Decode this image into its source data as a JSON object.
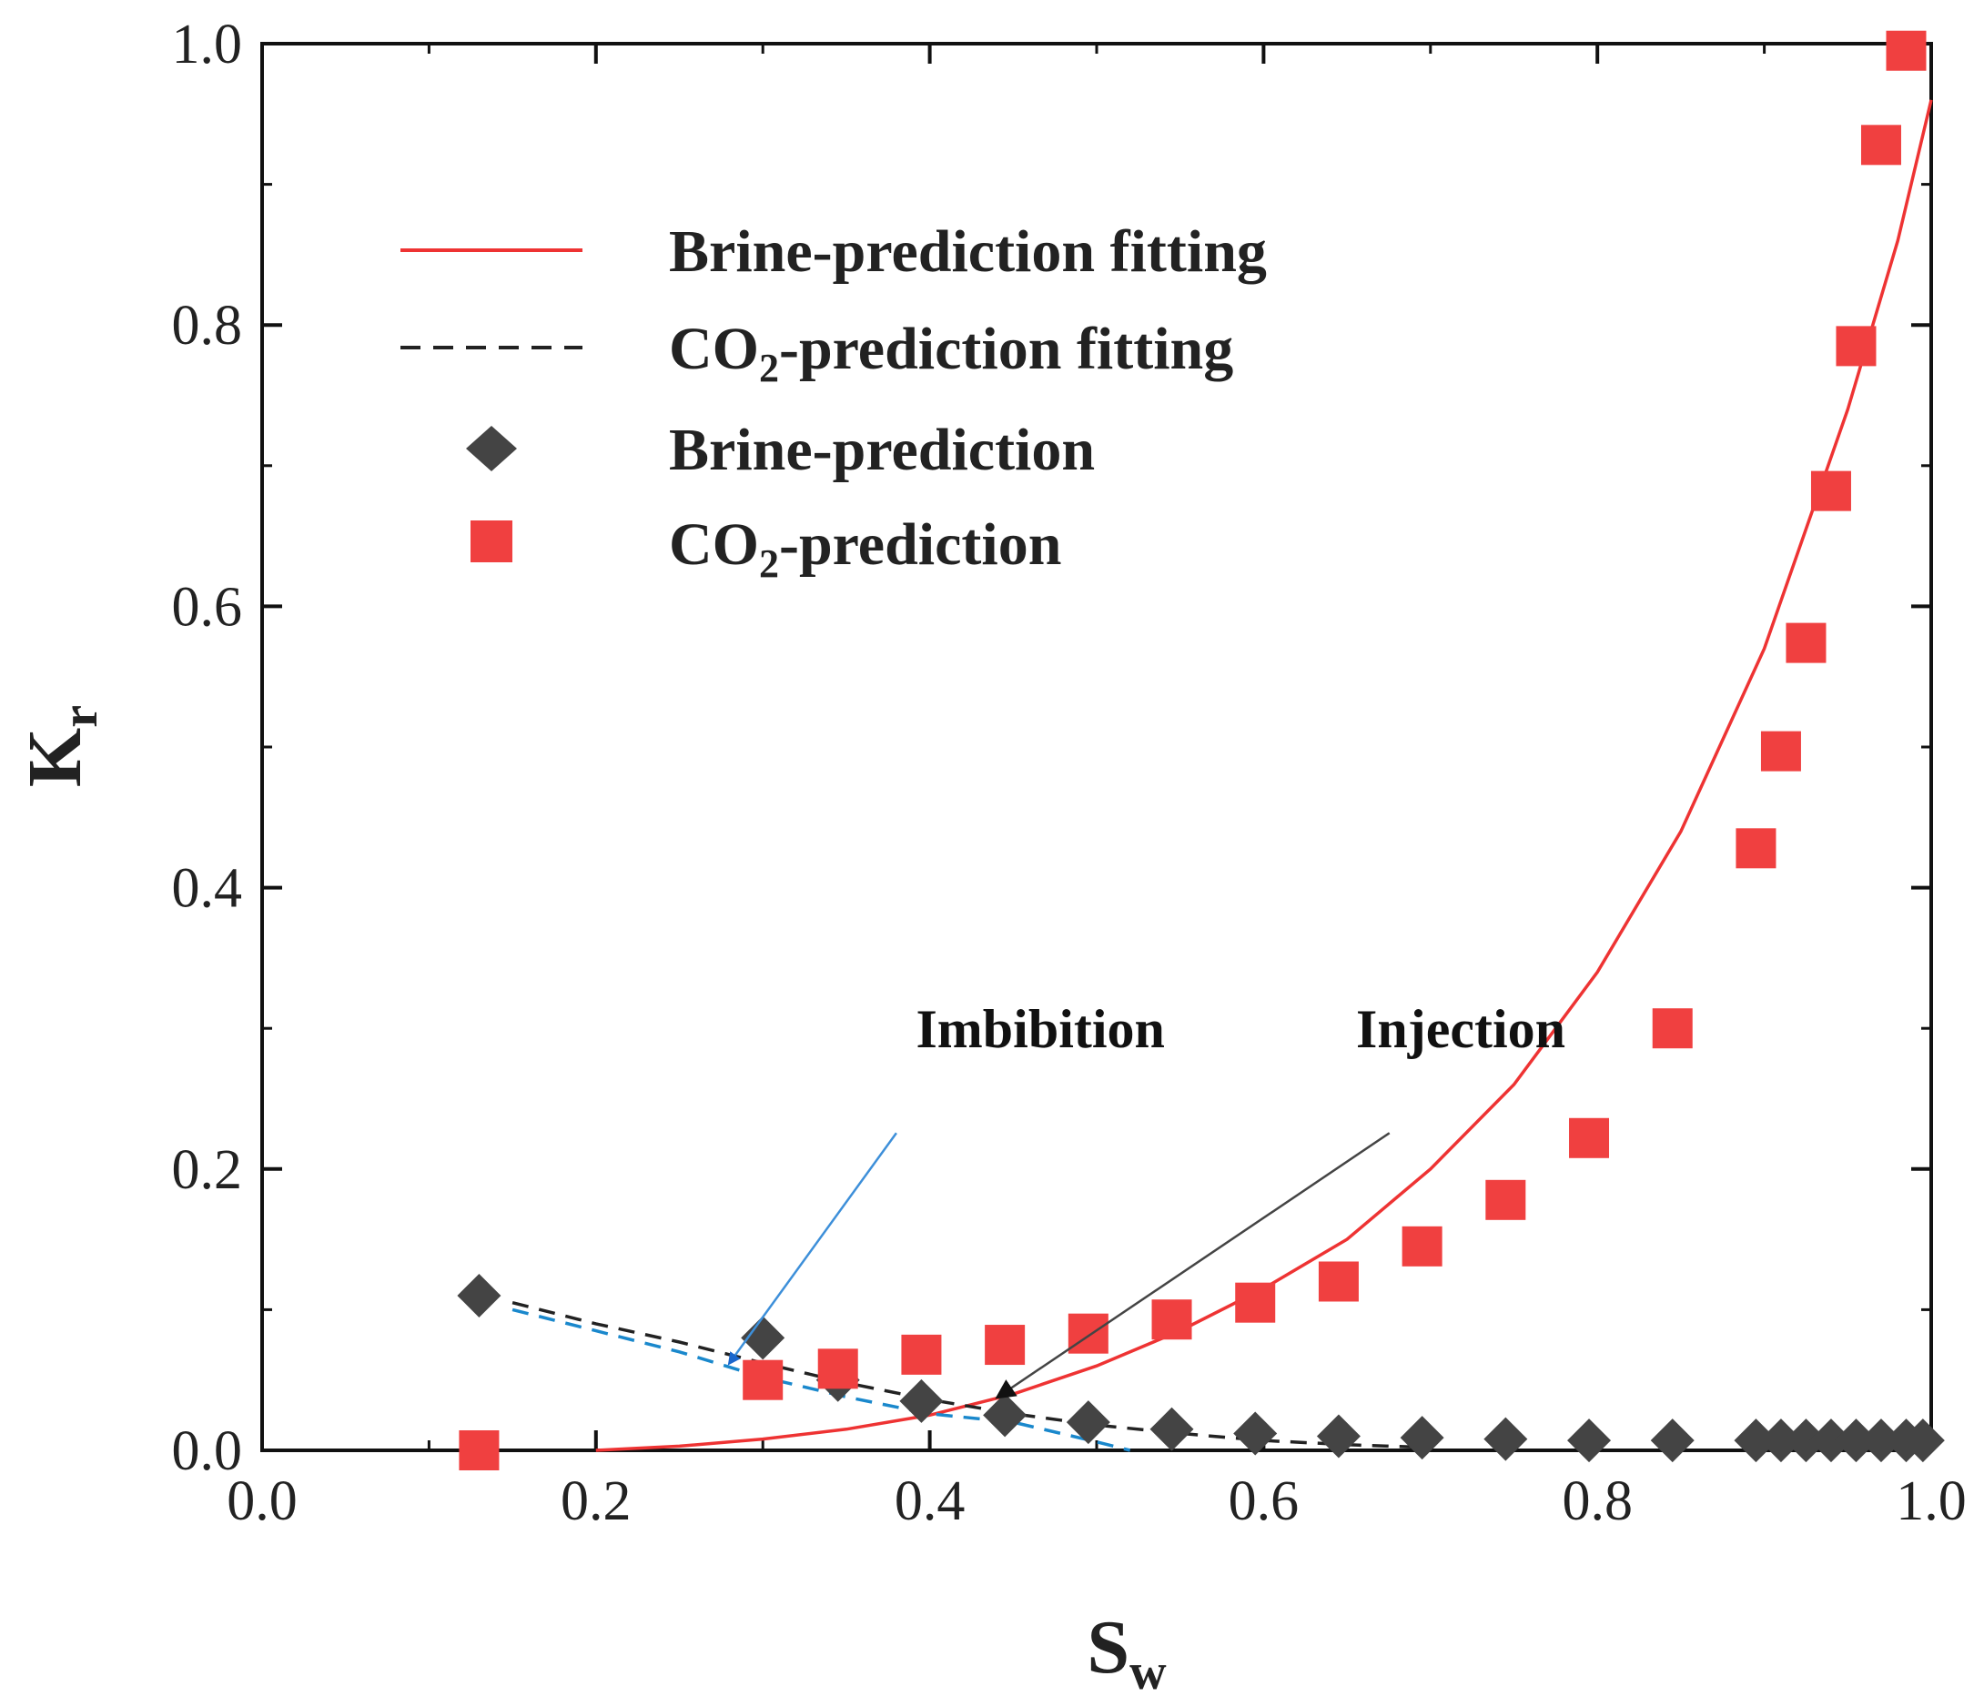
{
  "chart_data": {
    "type": "scatter",
    "xlabel": "S",
    "xlabel_sub": "w",
    "ylabel": "K",
    "ylabel_sub": "r",
    "xlim": [
      0.0,
      1.0
    ],
    "ylim": [
      0.0,
      1.0
    ],
    "x_ticks": [
      "0.0",
      "0.2",
      "0.4",
      "0.6",
      "0.8",
      "1.0"
    ],
    "y_ticks": [
      "0.0",
      "0.2",
      "0.4",
      "0.6",
      "0.8",
      "1.0"
    ],
    "legend": [
      {
        "id": "brine-fit",
        "label": "Brine-prediction fitting",
        "color": "#ee3333",
        "style": "solid-line"
      },
      {
        "id": "co2-fit",
        "label_prefix": "CO",
        "label_sub": "2",
        "label_suffix": "-prediction fitting",
        "color": "#222222",
        "style": "dashed-line"
      },
      {
        "id": "brine-pts",
        "label": "Brine-prediction",
        "color": "#444444",
        "style": "diamond"
      },
      {
        "id": "co2-pts",
        "label_prefix": "CO",
        "label_sub": "2",
        "label_suffix": "-prediction",
        "color": "#f04040",
        "style": "square"
      }
    ],
    "legend_position": "top-left",
    "series": [
      {
        "name": "Brine-prediction",
        "marker": "diamond",
        "color": "#444444",
        "x": [
          0.13,
          0.3,
          0.345,
          0.395,
          0.445,
          0.495,
          0.545,
          0.595,
          0.645,
          0.695,
          0.745,
          0.795,
          0.845,
          0.895,
          0.91,
          0.925,
          0.94,
          0.955,
          0.97,
          0.985,
          0.995
        ],
        "y": [
          0.11,
          0.08,
          0.05,
          0.035,
          0.025,
          0.02,
          0.015,
          0.012,
          0.01,
          0.009,
          0.008,
          0.007,
          0.007,
          0.007,
          0.007,
          0.007,
          0.007,
          0.007,
          0.007,
          0.007,
          0.007
        ]
      },
      {
        "name": "CO2-prediction",
        "marker": "square",
        "color": "#f04040",
        "x": [
          0.13,
          0.3,
          0.345,
          0.395,
          0.445,
          0.495,
          0.545,
          0.595,
          0.645,
          0.695,
          0.745,
          0.795,
          0.845,
          0.895,
          0.91,
          0.925,
          0.94,
          0.955,
          0.97,
          0.985
        ],
        "y": [
          0.0,
          0.05,
          0.058,
          0.068,
          0.075,
          0.083,
          0.093,
          0.105,
          0.12,
          0.145,
          0.178,
          0.222,
          0.3,
          0.428,
          0.497,
          0.574,
          0.682,
          0.785,
          0.928,
          0.995
        ]
      },
      {
        "name": "Brine-prediction fitting",
        "line": "solid",
        "color": "#ee3333",
        "x": [
          0.2,
          0.25,
          0.3,
          0.35,
          0.4,
          0.45,
          0.5,
          0.55,
          0.6,
          0.65,
          0.7,
          0.75,
          0.8,
          0.85,
          0.9,
          0.95,
          0.98,
          1.0
        ],
        "y": [
          0.0,
          0.003,
          0.008,
          0.015,
          0.025,
          0.04,
          0.06,
          0.085,
          0.115,
          0.15,
          0.2,
          0.26,
          0.34,
          0.44,
          0.57,
          0.74,
          0.86,
          0.96
        ]
      },
      {
        "name": "CO2-prediction fitting",
        "line": "dashed",
        "color": "#222222",
        "x": [
          0.15,
          0.2,
          0.25,
          0.3,
          0.35,
          0.4,
          0.45,
          0.5,
          0.55,
          0.6,
          0.65,
          0.7
        ],
        "y": [
          0.105,
          0.09,
          0.077,
          0.062,
          0.048,
          0.036,
          0.026,
          0.018,
          0.012,
          0.007,
          0.004,
          0.002
        ]
      },
      {
        "name": "Imbibition fitting",
        "line": "dashed",
        "color": "#1a88cc",
        "x": [
          0.15,
          0.2,
          0.25,
          0.3,
          0.35,
          0.4,
          0.45,
          0.5,
          0.52
        ],
        "y": [
          0.1,
          0.085,
          0.07,
          0.052,
          0.038,
          0.026,
          0.02,
          0.006,
          0.0
        ]
      }
    ],
    "annotations": [
      {
        "id": "imbibition",
        "text": "Imbibition",
        "color": "#3d8fd9",
        "text_at": [
          0.27,
          0.28
        ],
        "arrow_from": [
          0.38,
          0.245
        ],
        "arrow_to": [
          0.28,
          0.062
        ]
      },
      {
        "id": "injection",
        "text": "Injection",
        "color": "#444444",
        "text_at": [
          0.53,
          0.28
        ],
        "arrow_from": [
          0.58,
          0.245
        ],
        "arrow_to": [
          0.43,
          0.038
        ]
      }
    ]
  }
}
